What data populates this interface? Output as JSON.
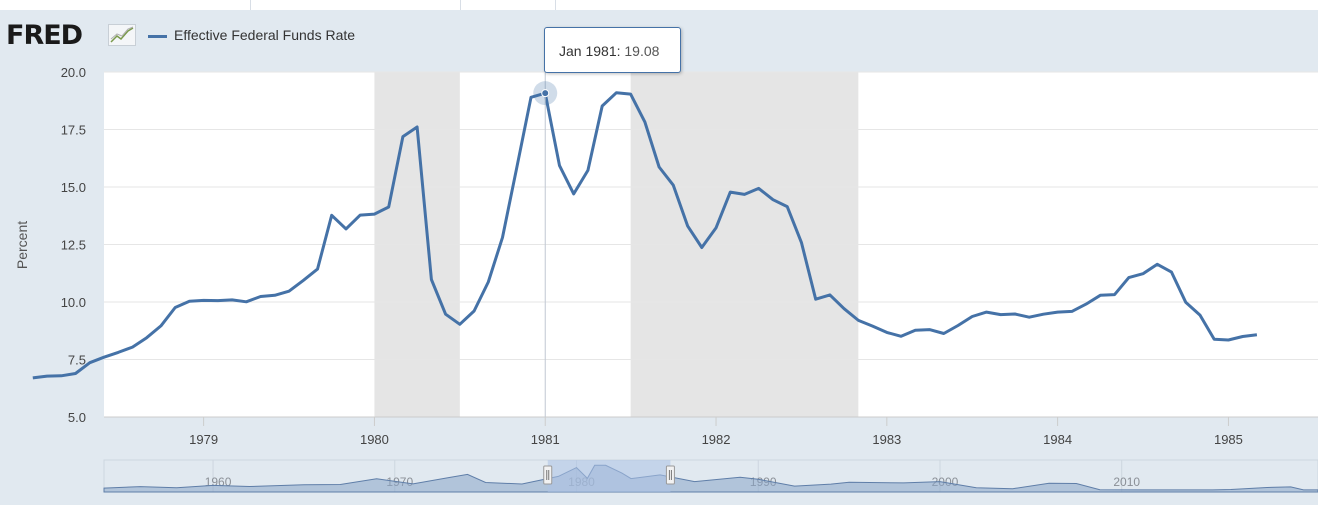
{
  "header": {
    "logo_text": "FRED",
    "legend_label": "Effective Federal Funds Rate"
  },
  "tooltip": {
    "date": "Jan 1981:",
    "value": "19.08"
  },
  "navigator": {
    "labels": [
      "1960",
      "1970",
      "1980",
      "1990",
      "2000",
      "2010"
    ]
  },
  "colors": {
    "series": "#4572a7",
    "recession": "#e5e5e5",
    "background": "#e1e9f0",
    "navigator_fill": "#8aa6c8",
    "navigator_mask": "#adc3e6"
  },
  "icons": {
    "trend": "line-chart-icon",
    "handle_left": "range-handle-icon",
    "handle_right": "range-handle-icon"
  },
  "chart_data": {
    "type": "line",
    "title": "",
    "xlabel": "",
    "ylabel": "Percent",
    "ylim": [
      5.0,
      20.0
    ],
    "y_ticks": [
      "20.0",
      "17.5",
      "15.0",
      "12.5",
      "10.0",
      "7.5",
      "5.0"
    ],
    "x_ticks": [
      "1979",
      "1980",
      "1981",
      "1982",
      "1983",
      "1984",
      "1985"
    ],
    "grid": "horizontal",
    "legend": "top-left",
    "recessions": [
      [
        "1980-01",
        "1980-07"
      ],
      [
        "1981-07",
        "1982-11"
      ]
    ],
    "series": [
      {
        "name": "Effective Federal Funds Rate",
        "x": [
          "1978-01",
          "1978-02",
          "1978-03",
          "1978-04",
          "1978-05",
          "1978-06",
          "1978-07",
          "1978-08",
          "1978-09",
          "1978-10",
          "1978-11",
          "1978-12",
          "1979-01",
          "1979-02",
          "1979-03",
          "1979-04",
          "1979-05",
          "1979-06",
          "1979-07",
          "1979-08",
          "1979-09",
          "1979-10",
          "1979-11",
          "1979-12",
          "1980-01",
          "1980-02",
          "1980-03",
          "1980-04",
          "1980-05",
          "1980-06",
          "1980-07",
          "1980-08",
          "1980-09",
          "1980-10",
          "1980-11",
          "1980-12",
          "1981-01",
          "1981-02",
          "1981-03",
          "1981-04",
          "1981-05",
          "1981-06",
          "1981-07",
          "1981-08",
          "1981-09",
          "1981-10",
          "1981-11",
          "1981-12",
          "1982-01",
          "1982-02",
          "1982-03",
          "1982-04",
          "1982-05",
          "1982-06",
          "1982-07",
          "1982-08",
          "1982-09",
          "1982-10",
          "1982-11",
          "1982-12",
          "1983-01",
          "1983-02",
          "1983-03",
          "1983-04",
          "1983-05",
          "1983-06",
          "1983-07",
          "1983-08",
          "1983-09",
          "1983-10",
          "1983-11",
          "1983-12",
          "1984-01",
          "1984-02",
          "1984-03",
          "1984-04",
          "1984-05",
          "1984-06",
          "1984-07",
          "1984-08",
          "1984-09",
          "1984-10",
          "1984-11",
          "1984-12",
          "1985-01",
          "1985-02",
          "1985-03"
        ],
        "values": [
          6.7,
          6.78,
          6.79,
          6.89,
          7.36,
          7.6,
          7.81,
          8.04,
          8.45,
          8.96,
          9.76,
          10.03,
          10.07,
          10.06,
          10.09,
          10.01,
          10.24,
          10.29,
          10.47,
          10.94,
          11.43,
          13.77,
          13.18,
          13.78,
          13.82,
          14.13,
          17.19,
          17.61,
          10.98,
          9.47,
          9.03,
          9.61,
          10.87,
          12.81,
          15.85,
          18.9,
          19.08,
          15.93,
          14.7,
          15.72,
          18.52,
          19.1,
          19.04,
          17.82,
          15.87,
          15.08,
          13.31,
          12.37,
          13.22,
          14.78,
          14.68,
          14.94,
          14.45,
          14.15,
          12.59,
          10.12,
          10.31,
          9.71,
          9.2,
          8.95,
          8.68,
          8.51,
          8.77,
          8.8,
          8.63,
          8.98,
          9.37,
          9.56,
          9.45,
          9.48,
          9.34,
          9.47,
          9.56,
          9.59,
          9.91,
          10.29,
          10.32,
          11.06,
          11.23,
          11.64,
          11.3,
          9.99,
          9.43,
          8.38,
          8.35,
          8.5,
          8.58
        ]
      }
    ]
  }
}
